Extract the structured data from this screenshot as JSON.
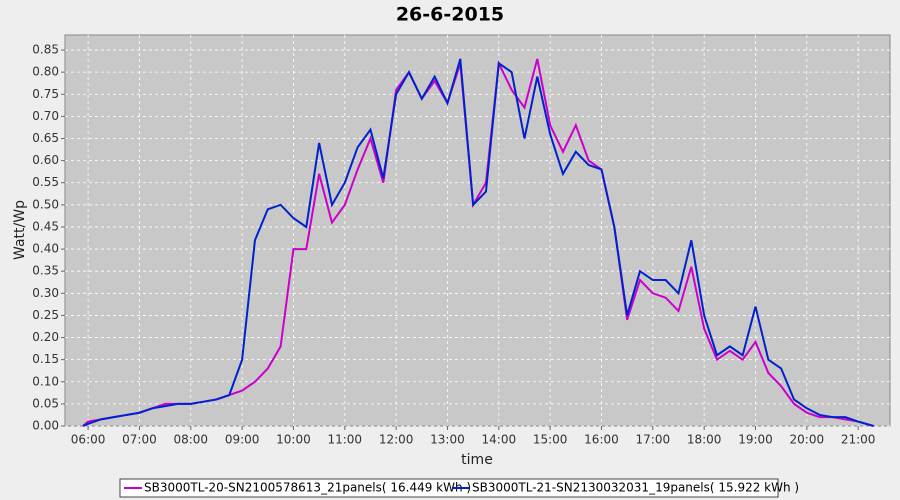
{
  "chart_data": {
    "type": "line",
    "title": "26-6-2015",
    "x_label": "time",
    "y_label": "Watt/Wp",
    "x": [
      5.9,
      6.0,
      6.25,
      6.5,
      6.75,
      7.0,
      7.25,
      7.5,
      7.75,
      8.0,
      8.25,
      8.5,
      8.75,
      9.0,
      9.25,
      9.5,
      9.75,
      10.0,
      10.25,
      10.5,
      10.75,
      11.0,
      11.25,
      11.5,
      11.75,
      12.0,
      12.25,
      12.5,
      12.75,
      13.0,
      13.25,
      13.5,
      13.75,
      14.0,
      14.25,
      14.5,
      14.75,
      15.0,
      15.25,
      15.5,
      15.75,
      16.0,
      16.25,
      16.5,
      16.75,
      17.0,
      17.25,
      17.5,
      17.75,
      18.0,
      18.25,
      18.5,
      18.75,
      19.0,
      19.25,
      19.5,
      19.75,
      20.0,
      20.25,
      20.5,
      20.75,
      21.0,
      21.3
    ],
    "series": [
      {
        "name": "SB3000TL-20-SN2100578613_21panels( 16.449 kWh )",
        "color": "#cc00cc",
        "values": [
          0.0,
          0.01,
          0.015,
          0.02,
          0.025,
          0.03,
          0.04,
          0.05,
          0.05,
          0.05,
          0.055,
          0.06,
          0.07,
          0.08,
          0.1,
          0.13,
          0.18,
          0.4,
          0.4,
          0.57,
          0.46,
          0.5,
          0.58,
          0.65,
          0.55,
          0.76,
          0.8,
          0.74,
          0.78,
          0.73,
          0.82,
          0.5,
          0.55,
          0.82,
          0.76,
          0.72,
          0.83,
          0.68,
          0.62,
          0.68,
          0.6,
          0.58,
          0.45,
          0.24,
          0.33,
          0.3,
          0.29,
          0.26,
          0.36,
          0.22,
          0.15,
          0.17,
          0.15,
          0.19,
          0.12,
          0.09,
          0.05,
          0.03,
          0.02,
          0.02,
          0.015,
          0.01,
          0.0
        ]
      },
      {
        "name": "SB3000TL-21-SN2130032031_19panels( 15.922 kWh )",
        "color": "#0022cc",
        "values": [
          0.0,
          0.005,
          0.015,
          0.02,
          0.025,
          0.03,
          0.04,
          0.045,
          0.05,
          0.05,
          0.055,
          0.06,
          0.07,
          0.15,
          0.42,
          0.49,
          0.5,
          0.47,
          0.45,
          0.64,
          0.5,
          0.55,
          0.63,
          0.67,
          0.56,
          0.75,
          0.8,
          0.74,
          0.79,
          0.73,
          0.83,
          0.5,
          0.53,
          0.82,
          0.8,
          0.65,
          0.79,
          0.66,
          0.57,
          0.62,
          0.59,
          0.58,
          0.45,
          0.25,
          0.35,
          0.33,
          0.33,
          0.3,
          0.42,
          0.25,
          0.16,
          0.18,
          0.16,
          0.27,
          0.15,
          0.13,
          0.06,
          0.04,
          0.025,
          0.02,
          0.02,
          0.01,
          0.0
        ]
      }
    ],
    "xlim": [
      5.55,
      21.62
    ],
    "xticks": [
      {
        "value": 6,
        "label": "06:00"
      },
      {
        "value": 7,
        "label": "07:00"
      },
      {
        "value": 8,
        "label": "08:00"
      },
      {
        "value": 9,
        "label": "09:00"
      },
      {
        "value": 10,
        "label": "10:00"
      },
      {
        "value": 11,
        "label": "11:00"
      },
      {
        "value": 12,
        "label": "12:00"
      },
      {
        "value": 13,
        "label": "13:00"
      },
      {
        "value": 14,
        "label": "14:00"
      },
      {
        "value": 15,
        "label": "15:00"
      },
      {
        "value": 16,
        "label": "16:00"
      },
      {
        "value": 17,
        "label": "17:00"
      },
      {
        "value": 18,
        "label": "18:00"
      },
      {
        "value": 19,
        "label": "19:00"
      },
      {
        "value": 20,
        "label": "20:00"
      },
      {
        "value": 21,
        "label": "21:00"
      }
    ],
    "ylim": [
      0,
      0.884
    ],
    "yticks": [
      {
        "value": 0,
        "label": "0.00"
      },
      0.05,
      {
        "value": 0.1,
        "label": "0.10"
      },
      0.15,
      {
        "value": 0.2,
        "label": "0.20"
      },
      0.25,
      {
        "value": 0.3,
        "label": "0.30"
      },
      0.35,
      {
        "value": 0.4,
        "label": "0.40"
      },
      0.45,
      {
        "value": 0.5,
        "label": "0.50"
      },
      0.55,
      {
        "value": 0.6,
        "label": "0.60"
      },
      0.65,
      {
        "value": 0.7,
        "label": "0.70"
      },
      0.75,
      {
        "value": 0.8,
        "label": "0.80"
      },
      0.85
    ],
    "grid": true,
    "legend": "bottom"
  }
}
